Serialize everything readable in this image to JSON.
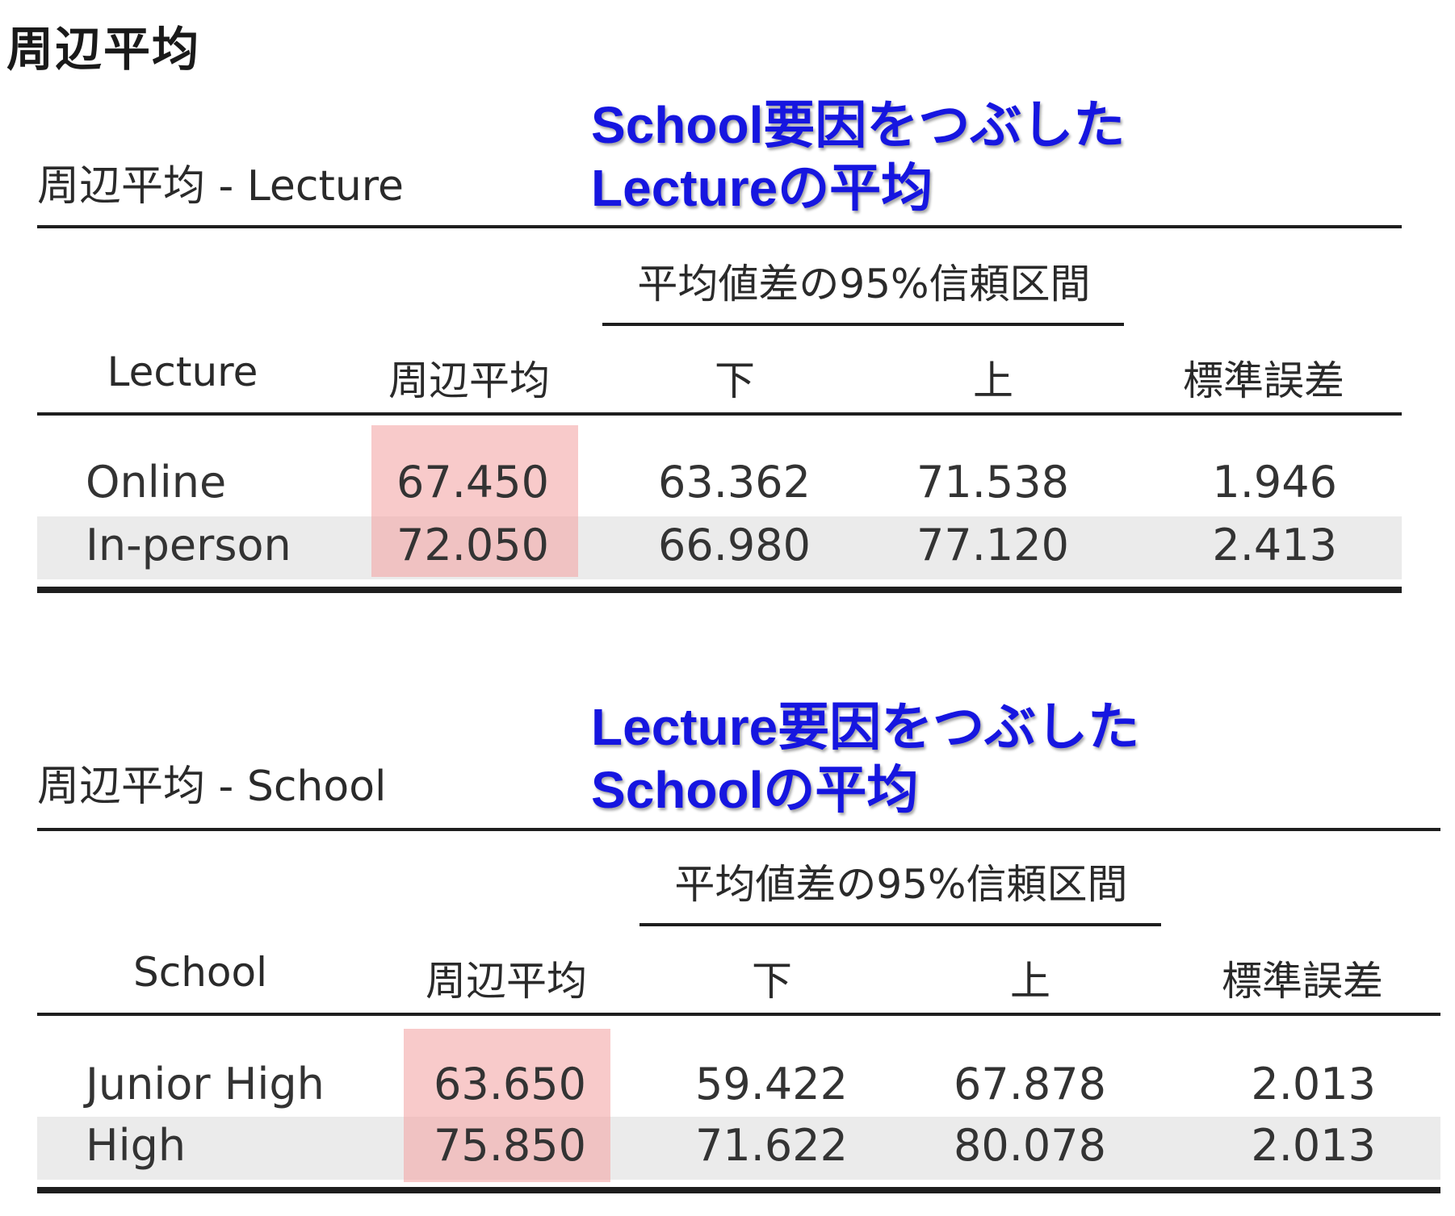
{
  "page_title": "周辺平均",
  "tables": [
    {
      "title": "周辺平均 - Lecture",
      "annotation": [
        "School要因をつぶした",
        "Lectureの平均"
      ],
      "ci_header": "平均値差の95%信頼区間",
      "columns": [
        "Lecture",
        "周辺平均",
        "下",
        "上",
        "標準誤差"
      ],
      "rows": [
        {
          "label": "Online",
          "mean": "67.450",
          "lower": "63.362",
          "upper": "71.538",
          "se": "1.946"
        },
        {
          "label": "In-person",
          "mean": "72.050",
          "lower": "66.980",
          "upper": "77.120",
          "se": "2.413"
        }
      ]
    },
    {
      "title": "周辺平均 - School",
      "annotation": [
        "Lecture要因をつぶした",
        "Schoolの平均"
      ],
      "ci_header": "平均値差の95%信頼区間",
      "columns": [
        "School",
        "周辺平均",
        "下",
        "上",
        "標準誤差"
      ],
      "rows": [
        {
          "label": "Junior High",
          "mean": "63.650",
          "lower": "59.422",
          "upper": "67.878",
          "se": "2.013"
        },
        {
          "label": "High",
          "mean": "75.850",
          "lower": "71.622",
          "upper": "80.078",
          "se": "2.013"
        }
      ]
    }
  ],
  "colors": {
    "annotation_text": "#1616e0",
    "highlight": "#f4aaaa",
    "row_stripe": "#ebebeb",
    "rule": "#1e1e1e"
  }
}
